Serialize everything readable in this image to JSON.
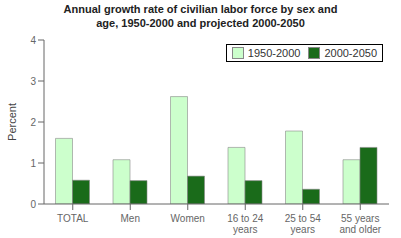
{
  "chart_data": {
    "type": "bar",
    "title": "Annual growth rate of civilian labor force by sex and\nage, 1950-2000 and projected 2000-2050",
    "categories": [
      "TOTAL",
      "Men",
      "Women",
      "16 to 24\nyears",
      "25 to 54\nyears",
      "55 years\nand older"
    ],
    "series": [
      {
        "name": "1950-2000",
        "color": "#ccffcc",
        "values": [
          1.6,
          1.08,
          2.62,
          1.38,
          1.78,
          1.08
        ]
      },
      {
        "name": "2000-2050",
        "color": "#1a6b1a",
        "values": [
          0.58,
          0.57,
          0.68,
          0.57,
          0.36,
          1.38
        ]
      }
    ],
    "ylabel": "Percent",
    "ylim": [
      0,
      4
    ],
    "yticks": [
      0,
      1,
      2,
      3,
      4
    ],
    "legend": "upper right",
    "grid": false
  }
}
